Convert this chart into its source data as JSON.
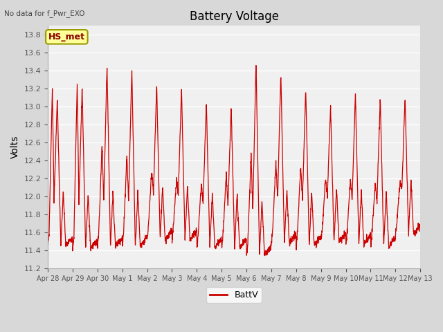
{
  "title": "Battery Voltage",
  "ylabel": "Volts",
  "top_left_text": "No data for f_Pwr_EXO",
  "legend_label": "BattV",
  "legend_color": "#cc0000",
  "line_color": "#cc0000",
  "background_color": "#d8d8d8",
  "plot_bg_color": "#f0f0f0",
  "ylim": [
    11.2,
    13.9
  ],
  "yticks": [
    11.2,
    11.4,
    11.6,
    11.8,
    12.0,
    12.2,
    12.4,
    12.6,
    12.8,
    13.0,
    13.2,
    13.4,
    13.6,
    13.8
  ],
  "xtick_labels": [
    "Apr 28",
    "Apr 29",
    "Apr 30",
    "May 1",
    "May 2",
    "May 3",
    "May 4",
    "May 5",
    "May 6",
    "May 7",
    "May 8",
    "May 9",
    "May 10",
    "May 11",
    "May 12",
    "May 13"
  ],
  "hs_met_label": "HS_met",
  "hs_met_box_color": "#ffff99",
  "hs_met_border_color": "#999900",
  "n_days": 15,
  "peak_heights": [
    13.1,
    13.22,
    13.47,
    13.43,
    13.25,
    13.2,
    13.05,
    13.0,
    13.5,
    13.38,
    13.2,
    13.0,
    13.15,
    13.1,
    13.1
  ],
  "trough_heights": [
    11.45,
    11.42,
    11.45,
    11.45,
    11.52,
    11.52,
    11.43,
    11.43,
    11.35,
    11.48,
    11.46,
    11.5,
    11.47,
    11.45,
    11.58
  ],
  "mid_peaks": [
    13.22,
    13.28,
    12.58,
    12.46,
    12.3,
    12.19,
    12.15,
    12.23,
    12.45,
    12.39,
    12.33,
    12.2,
    12.2,
    12.15,
    12.17
  ]
}
